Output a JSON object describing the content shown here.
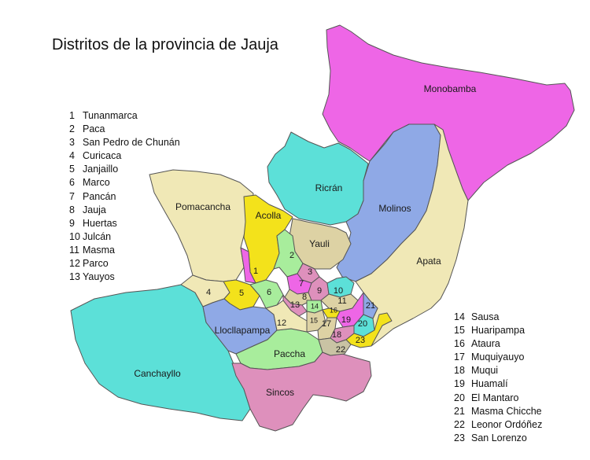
{
  "title": "Distritos de la provincia de Jauja",
  "legend_left": [
    {
      "num": "1",
      "name": "Tunanmarca"
    },
    {
      "num": "2",
      "name": "Paca"
    },
    {
      "num": "3",
      "name": "San Pedro de Chunán"
    },
    {
      "num": "4",
      "name": "Curicaca"
    },
    {
      "num": "5",
      "name": "Janjaillo"
    },
    {
      "num": "6",
      "name": "Marco"
    },
    {
      "num": "7",
      "name": "Pancán"
    },
    {
      "num": "8",
      "name": "Jauja"
    },
    {
      "num": "9",
      "name": "Huertas"
    },
    {
      "num": "10",
      "name": "Julcán"
    },
    {
      "num": "11",
      "name": "Masma"
    },
    {
      "num": "12",
      "name": "Parco"
    },
    {
      "num": "13",
      "name": "Yauyos"
    }
  ],
  "legend_right": [
    {
      "num": "14",
      "name": "Sausa"
    },
    {
      "num": "15",
      "name": "Huaripampa"
    },
    {
      "num": "16",
      "name": "Ataura"
    },
    {
      "num": "17",
      "name": "Muquiyauyo"
    },
    {
      "num": "18",
      "name": "Muqui"
    },
    {
      "num": "19",
      "name": "Huamalí"
    },
    {
      "num": "20",
      "name": "El Mantaro"
    },
    {
      "num": "21",
      "name": "Masma Chicche"
    },
    {
      "num": "22",
      "name": "Leonor Ordóñez"
    },
    {
      "num": "23",
      "name": "San Lorenzo"
    }
  ],
  "region_names": {
    "monobamba": "Monobamba",
    "ricran": "Ricrán",
    "molinos": "Molinos",
    "pomacancha": "Pomacancha",
    "acolla": "Acolla",
    "yauli": "Yauli",
    "apata": "Apata",
    "llocllapampa": "Llocllapampa",
    "canchayllo": "Canchayllo",
    "paccha": "Paccha",
    "sincos": "Sincos"
  },
  "region_numbers": [
    "1",
    "2",
    "3",
    "4",
    "5",
    "6",
    "7",
    "8",
    "9",
    "10",
    "11",
    "12",
    "13",
    "14",
    "15",
    "16",
    "17",
    "18",
    "19",
    "20",
    "21",
    "22",
    "23"
  ],
  "colors": {
    "magenta": "#ee66e6",
    "cyan": "#5ce0d8",
    "blue": "#8fa9e6",
    "cream": "#f0e8b6",
    "yellow": "#f3e21b",
    "tan": "#ddd2a4",
    "green": "#a8ed9c",
    "pink": "#de90bc",
    "grey": "#c9c3a4"
  }
}
